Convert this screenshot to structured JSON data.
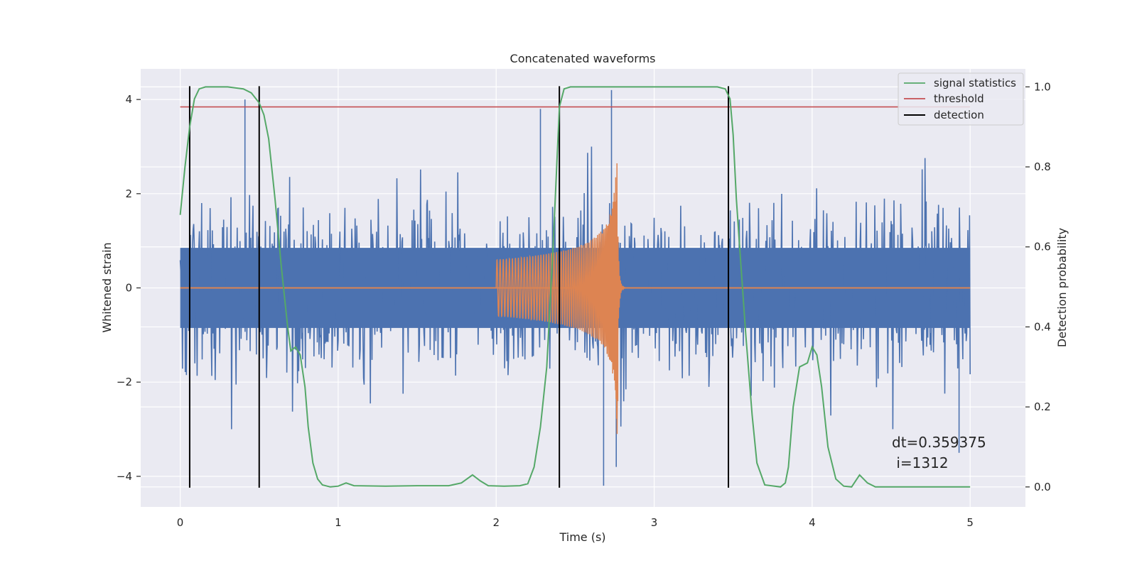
{
  "chart_data": {
    "type": "line",
    "title": "Concatenated waveforms",
    "xlabel": "Time (s)",
    "ylabel_left": "Whitened strain",
    "ylabel_right": "Detection probability",
    "xlim": [
      -0.25,
      5.35
    ],
    "ylim_left": [
      -4.65,
      4.65
    ],
    "ylim_right": [
      -0.05,
      1.045
    ],
    "x_ticks": [
      0,
      1,
      2,
      3,
      4,
      5
    ],
    "y_left_ticks": [
      -4,
      -2,
      0,
      2,
      4
    ],
    "y_right_ticks": [
      0.0,
      0.2,
      0.4,
      0.6,
      0.8,
      1.0
    ],
    "grid": true,
    "legend_position": "upper-right",
    "colors": {
      "noise": "#4c72b0",
      "signal": "#dd8452",
      "statistics": "#55a868",
      "threshold": "#c44e52",
      "detection": "#000000",
      "background": "#eaeaf2",
      "grid": "#ffffff"
    },
    "series": [
      {
        "name": "signal statistics",
        "axis": "right",
        "x": [
          0.0,
          0.03,
          0.06,
          0.09,
          0.12,
          0.16,
          0.2,
          0.3,
          0.4,
          0.45,
          0.5,
          0.53,
          0.56,
          0.6,
          0.64,
          0.68,
          0.7,
          0.73,
          0.76,
          0.79,
          0.81,
          0.84,
          0.87,
          0.9,
          0.95,
          1.0,
          1.05,
          1.1,
          1.3,
          1.5,
          1.7,
          1.78,
          1.85,
          1.9,
          1.95,
          2.05,
          2.15,
          2.2,
          2.24,
          2.28,
          2.32,
          2.36,
          2.4,
          2.43,
          2.47,
          2.55,
          3.0,
          3.4,
          3.45,
          3.48,
          3.5,
          3.52,
          3.55,
          3.58,
          3.62,
          3.65,
          3.7,
          3.8,
          3.83,
          3.85,
          3.88,
          3.92,
          3.97,
          4.0,
          4.03,
          4.06,
          4.1,
          4.15,
          4.2,
          4.25,
          4.3,
          4.35,
          4.4,
          4.6,
          4.8,
          5.0
        ],
        "values": [
          0.68,
          0.8,
          0.9,
          0.97,
          0.995,
          1.0,
          1.0,
          1.0,
          0.995,
          0.985,
          0.96,
          0.93,
          0.87,
          0.72,
          0.55,
          0.4,
          0.34,
          0.35,
          0.33,
          0.25,
          0.15,
          0.06,
          0.02,
          0.005,
          0.0,
          0.002,
          0.01,
          0.003,
          0.002,
          0.003,
          0.003,
          0.01,
          0.03,
          0.015,
          0.003,
          0.002,
          0.003,
          0.008,
          0.05,
          0.15,
          0.3,
          0.6,
          0.95,
          0.995,
          1.0,
          1.0,
          1.0,
          1.0,
          0.995,
          0.97,
          0.88,
          0.72,
          0.55,
          0.38,
          0.18,
          0.06,
          0.005,
          0.0,
          0.01,
          0.05,
          0.2,
          0.3,
          0.31,
          0.35,
          0.33,
          0.25,
          0.1,
          0.02,
          0.002,
          0.0,
          0.03,
          0.01,
          0.0,
          0.0,
          0.0,
          0.0
        ]
      },
      {
        "name": "threshold",
        "axis": "right",
        "x": [
          0,
          5
        ],
        "values": [
          0.95,
          0.95
        ]
      }
    ],
    "detections": [
      0.06,
      0.5,
      2.4,
      3.47
    ],
    "noise_envelope": {
      "x": [
        0,
        5
      ],
      "typical_amplitude": 1.4,
      "notable_spikes": [
        {
          "x": 0.41,
          "y": 4.0
        },
        {
          "x": 2.28,
          "y": 3.8
        },
        {
          "x": 2.68,
          "y": -4.2
        },
        {
          "x": 2.73,
          "y": 4.2
        },
        {
          "x": 2.76,
          "y": -3.8
        },
        {
          "x": 4.93,
          "y": -3.5
        }
      ]
    },
    "chirp": {
      "x_start": 2.0,
      "x_merger": 2.77,
      "x_end": 3.0,
      "amplitude_start": 0.6,
      "amplitude_peak": 3.2
    },
    "legend": [
      "signal statistics",
      "threshold",
      "detection"
    ],
    "annotation": {
      "line1": "dt=0.359375",
      "line2": " i=1312"
    }
  }
}
